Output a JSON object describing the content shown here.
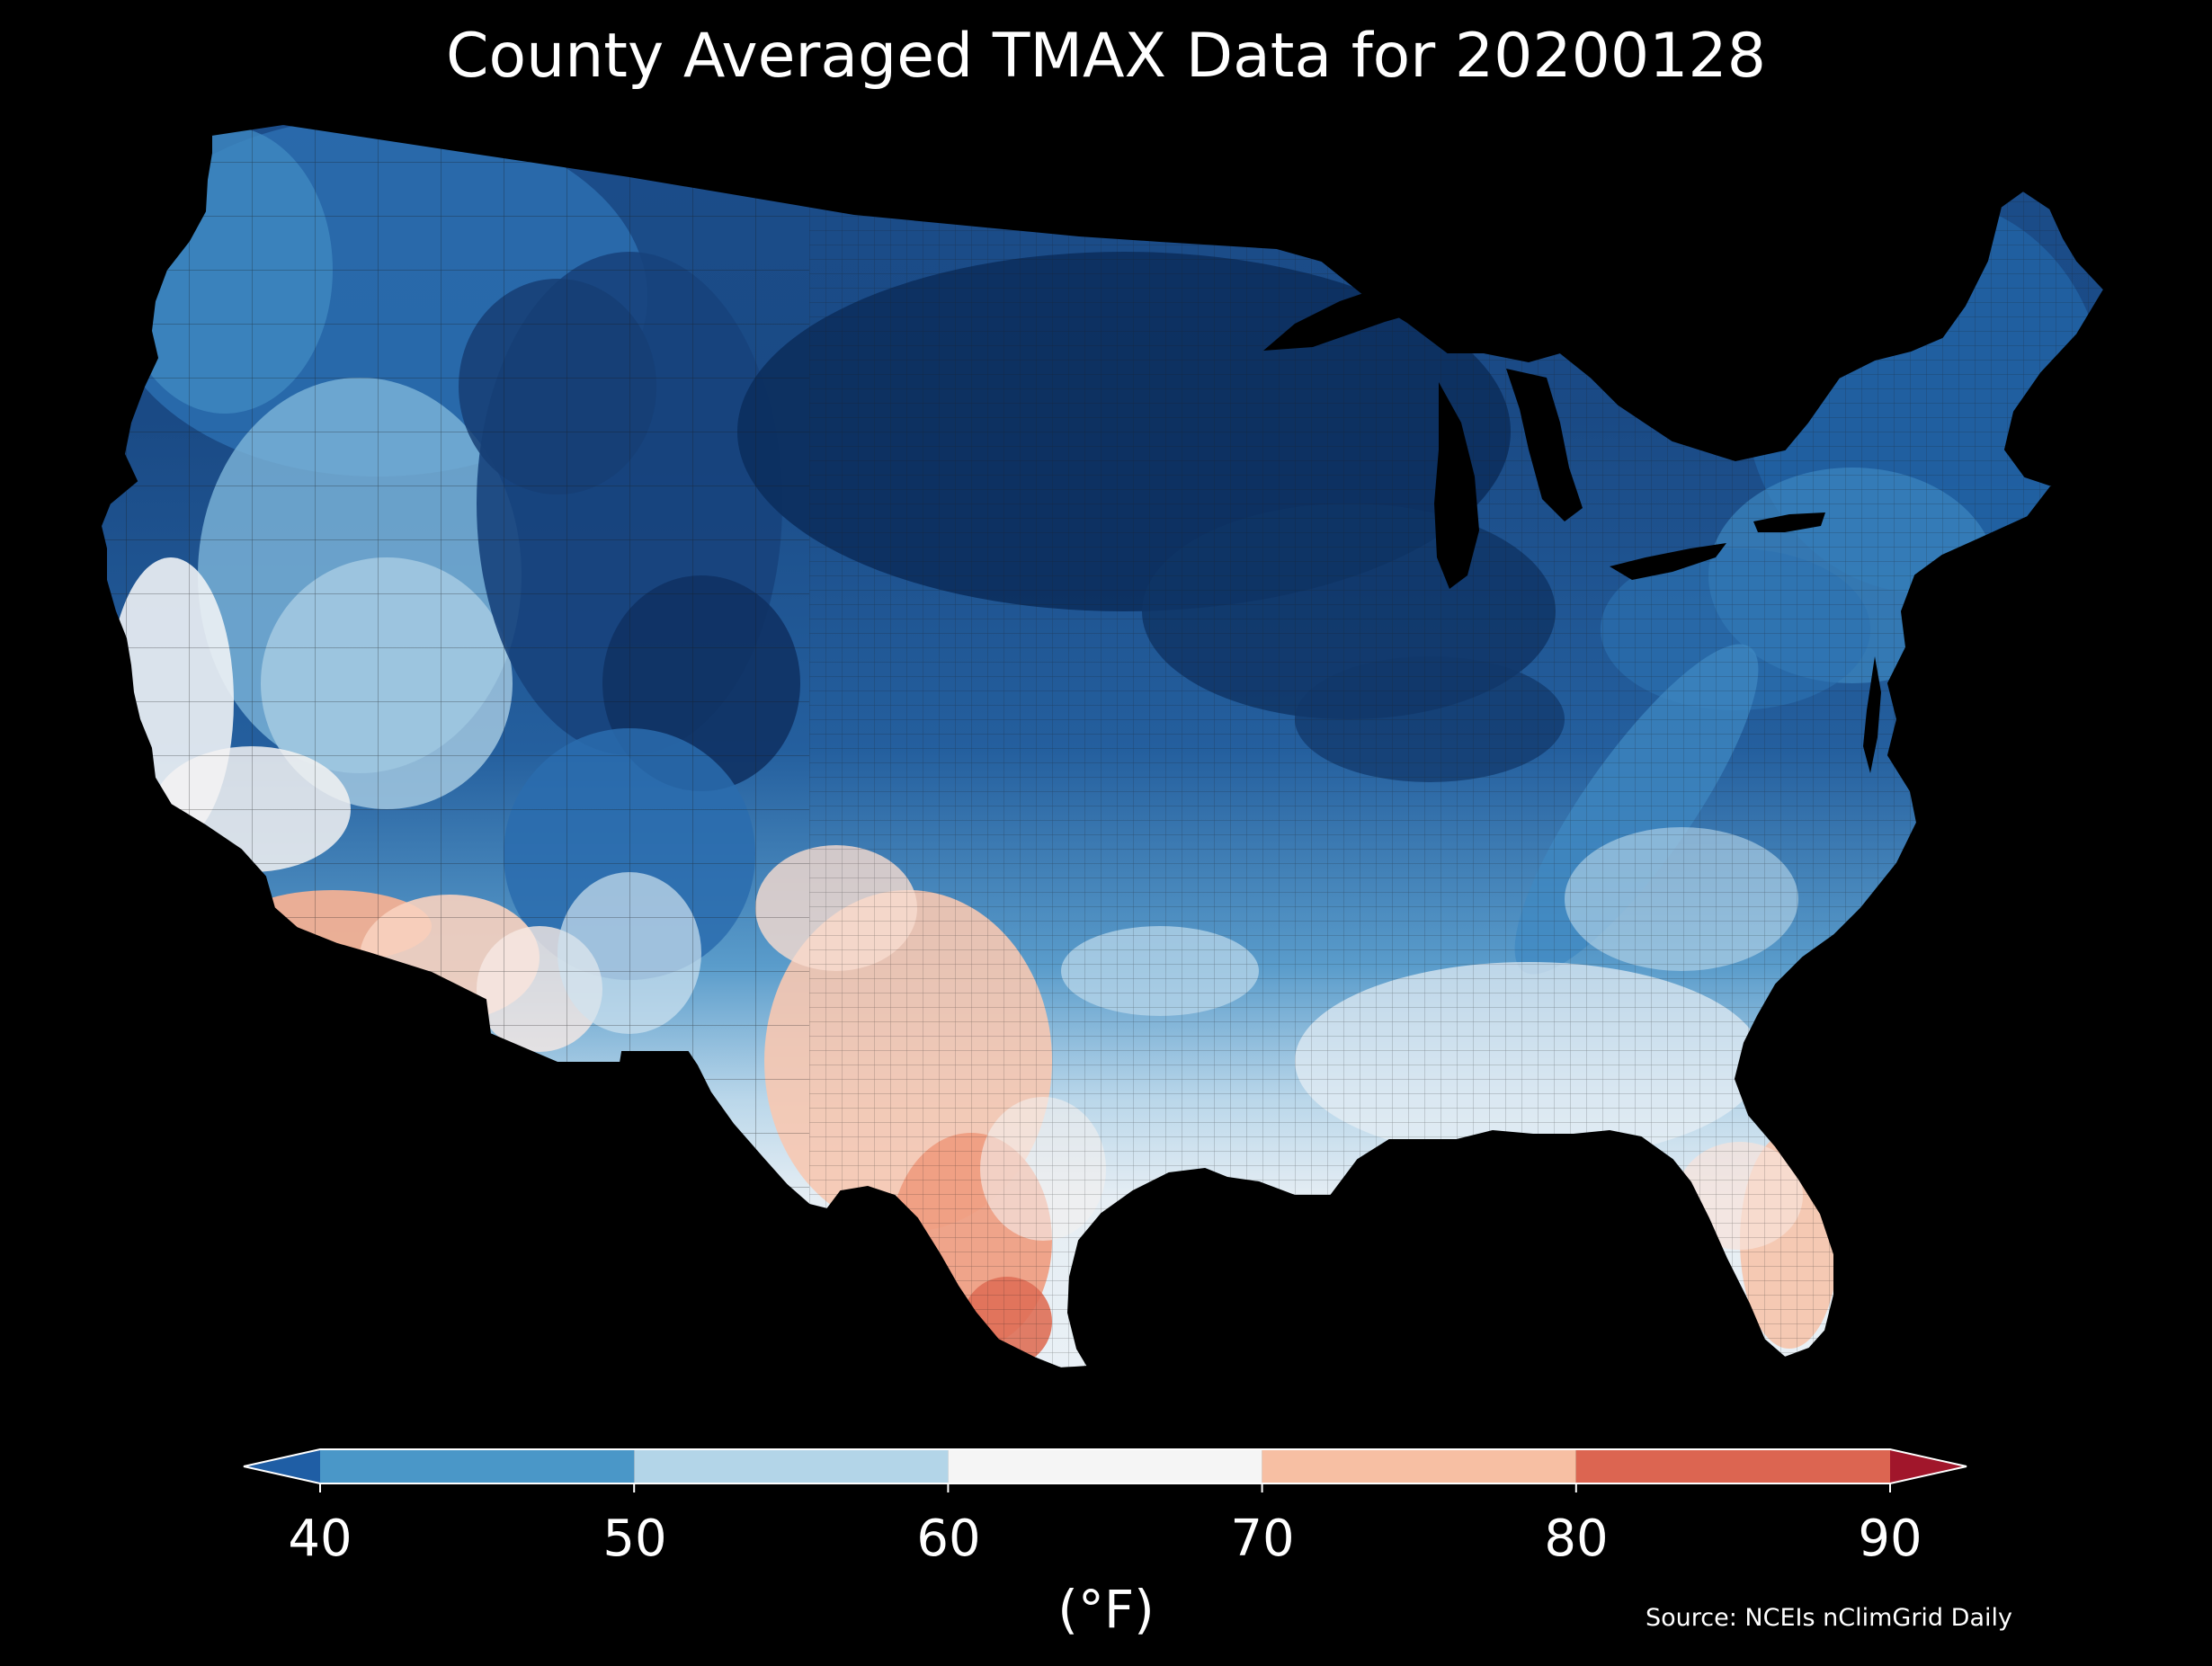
{
  "title": "County Averaged TMAX Data for 20200128",
  "colorbar": {
    "ticks": [
      "40",
      "50",
      "60",
      "70",
      "80",
      "90"
    ],
    "unit": "(°F)",
    "bins": [
      {
        "from": 40,
        "to": 50,
        "color": "#4a97c8"
      },
      {
        "from": 50,
        "to": 60,
        "color": "#b3d5e8"
      },
      {
        "from": 60,
        "to": 70,
        "color": "#f5f5f5"
      },
      {
        "from": 70,
        "to": 80,
        "color": "#f7bfa3"
      },
      {
        "from": 80,
        "to": 90,
        "color": "#dc6551"
      }
    ],
    "under_color": "#1f5ea5",
    "over_color": "#a1162b",
    "extend": "both"
  },
  "source": "Source: NCEIs nClimGrid Daily",
  "map": {
    "region": "contiguous United States, county level",
    "variable": "TMAX",
    "date": "20200128",
    "colormap": "red-blue diverging",
    "background": "#000000",
    "border_color": "#1a1a1a",
    "palette": {
      "deep_blue": "#0c2f5e",
      "dark_blue": "#184b8a",
      "mid_blue": "#2a6db0",
      "blue": "#3e8ac2",
      "light_blue": "#7db5d9",
      "pale_blue": "#bcd9ea",
      "near_white": "#e3eef5",
      "white": "#f5f3f2",
      "pale_red": "#fadacb",
      "light_red": "#f6b89d",
      "red": "#ec8f73",
      "deep_red": "#dc6551"
    }
  }
}
